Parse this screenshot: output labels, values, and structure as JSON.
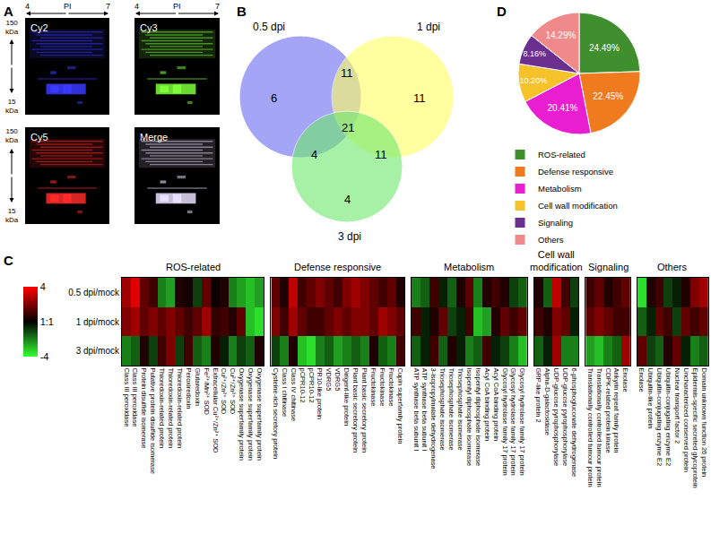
{
  "chart_data": [
    {
      "panel": "A",
      "type": "gel",
      "x_label": "PI",
      "x_ticks": [
        4,
        7
      ],
      "y_ticks": [
        "150 kDa",
        "15 kDa"
      ],
      "images": [
        {
          "name": "Cy2",
          "color": "#3a3aff"
        },
        {
          "name": "Cy3",
          "color": "#7dff3a"
        },
        {
          "name": "Cy5",
          "color": "#ff2a2a"
        },
        {
          "name": "Merge",
          "color": "#e8e0ff"
        }
      ]
    },
    {
      "panel": "B",
      "type": "venn",
      "sets": [
        {
          "name": "0.5 dpi",
          "color": "#6b6bf2"
        },
        {
          "name": "1 dpi",
          "color": "#ffff60"
        },
        {
          "name": "3 dpi",
          "color": "#6de86d"
        }
      ],
      "regions": [
        {
          "sets": [
            "0.5 dpi"
          ],
          "count": 6
        },
        {
          "sets": [
            "0.5 dpi",
            "1 dpi"
          ],
          "count": 11
        },
        {
          "sets": [
            "1 dpi"
          ],
          "count": 11
        },
        {
          "sets": [
            "0.5 dpi",
            "3 dpi"
          ],
          "count": 4
        },
        {
          "sets": [
            "0.5 dpi",
            "1 dpi",
            "3 dpi"
          ],
          "count": 21
        },
        {
          "sets": [
            "1 dpi",
            "3 dpi"
          ],
          "count": 11
        },
        {
          "sets": [
            "3 dpi"
          ],
          "count": 4
        }
      ]
    },
    {
      "panel": "C",
      "type": "heatmap",
      "rows": [
        "0.5 dpi/mock",
        "1 dpi/mock",
        "3 dpi/mock"
      ],
      "colorbar": {
        "range": [
          -4,
          4
        ],
        "ticks": [
          4,
          {
            "value": 0,
            "label": "1:1"
          },
          -4
        ],
        "colors": [
          "#33ff33",
          "#000000",
          "#ff0000"
        ]
      },
      "groups": [
        {
          "name": "ROS-related",
          "categories": [
            "Class III peroxidase",
            "Class III peroxidase",
            "Protein disulfide isomerase",
            "Putative protein disulfide isomerase",
            "Thioredoxin-related protein",
            "Thioredoxin-related protein",
            "Thioredoxin-related protein",
            "Peroxiredoxin",
            "Glutaredoxin",
            "Fe²⁺/Mn²⁺ SOD",
            "Extracellular Cu²⁺/Zn²⁺ SOD",
            "Cu²⁺/Zn²⁺ SOD",
            "Cu²⁺/Zn²⁺ SOD",
            "Oxygenase superfamily protein",
            "Oxygenase superfamily protein",
            "Oxygenase superfamily protein"
          ],
          "cells": [
            [
              2.5,
              3.5,
              1.5,
              1,
              -2,
              -2.5,
              0.5,
              0.3,
              -1,
              1.5,
              0.2,
              0.5,
              -2,
              -2.5,
              -3,
              -2.5
            ],
            [
              2,
              2.5,
              1.5,
              2,
              1.5,
              2,
              1.5,
              1,
              1.5,
              2.5,
              0.8,
              1,
              0.5,
              1.5,
              -3,
              -3.5
            ],
            [
              -2,
              -1.5,
              0.5,
              -1,
              1,
              2,
              -1,
              1,
              -1.5,
              -2,
              0.5,
              -0.5,
              -2,
              -1,
              -1.5,
              0.5
            ]
          ]
        },
        {
          "name": "Defense responsive",
          "categories": [
            "Cysteine-rich secretory protein",
            "Class I chitinase",
            "Class IV chitinase",
            "pCPR10-12",
            "pCPR10-12",
            "PR10-like protein",
            "VDRG5",
            "VDRG5",
            "Dirigent-like protein",
            "Plant basic secretory protein",
            "Plant basic secretory protein",
            "Fructokinase",
            "Fructokinase",
            "Fructokinase",
            "Cupin superfamily protein"
          ],
          "cells": [
            [
              1.5,
              0.5,
              3,
              1,
              1.5,
              2,
              1.5,
              1,
              2,
              2.5,
              2,
              1.5,
              1,
              1.5,
              0.5
            ],
            [
              2,
              1,
              2.5,
              1.5,
              1,
              1,
              1.5,
              2,
              1.5,
              2,
              2,
              1.5,
              2.5,
              2,
              1.5
            ],
            [
              -1,
              -2,
              0.5,
              -3,
              -3.5,
              -2,
              -1.5,
              -2.5,
              -2,
              -1.5,
              -2,
              0.5,
              -1.5,
              -2,
              1
            ]
          ]
        },
        {
          "name": "Metabolism",
          "categories": [
            "ATP synthase beta subunit I",
            "ATP synthase beta subunit I",
            "3-isopropylmalate dehydrogenase",
            "Triosephosphate isomerase",
            "Triosephosphate isomerase",
            "Triosephosphate isomerase",
            "Isopentyl diphosphate isomerase",
            "Isopentyl diphosphate isomerase",
            "Acyl CoA binding protein",
            "Acyl CoA binding protein",
            "Glycosyl hydrolase family 17 protein",
            "Glycosyl hydrolase family 17 protein",
            "Glycosyl hydrolase family 17 protein"
          ],
          "cells": [
            [
              -2,
              -1.5,
              1,
              -0.5,
              -1.5,
              0.5,
              1.5,
              -2,
              0.5,
              1,
              0.5,
              -1,
              -1.5
            ],
            [
              1,
              -0.5,
              0.5,
              1.5,
              -1,
              -0.5,
              1,
              -3,
              -2.5,
              0.5,
              1.5,
              1,
              1.5
            ],
            [
              -1.5,
              -0.5,
              1,
              -1.5,
              0.5,
              -0.5,
              -2,
              -1.5,
              1,
              -0.5,
              -1,
              -2,
              -3
            ]
          ]
        },
        {
          "name": "Cell wall modification",
          "categories": [
            "GRP-like protein 2",
            "Alpha-D-galactosidase",
            "UDP-glucose pyrophosphorylase",
            "UDP-glucose pyrophosphorylase",
            "6-phosphogluconate dehydrogenase"
          ],
          "cells": [
            [
              0.5,
              -1.5,
              3,
              1,
              -1
            ],
            [
              1,
              0.5,
              2,
              1.5,
              -0.5
            ],
            [
              -1.5,
              -0.5,
              2.5,
              -2,
              -2
            ]
          ]
        },
        {
          "name": "Signaling",
          "categories": [
            "Translationally controlled tumour protein",
            "Translationally controlled tumour protein",
            "CDPK-related protein kinase",
            "Ankyrin repeat family protein",
            "Enolase"
          ],
          "cells": [
            [
              1,
              1.5,
              0.5,
              1,
              1.5
            ],
            [
              1.5,
              2,
              1.5,
              1,
              1
            ],
            [
              -2.5,
              -3,
              -2,
              -1.5,
              2.5
            ]
          ]
        },
        {
          "name": "Others",
          "categories": [
            "Enolase",
            "Ubiquitin-like protein",
            "Ubiquitin-conjugating enzyme E2",
            "Ubiquitin-conjugating enzyme E2",
            "Nuclear transport factor 2",
            "Uncharacterized conserved protein",
            "Epidermis-specific secreted glycoprotein",
            "Domain unknown function 26 protein"
          ],
          "cells": [
            [
              -3.5,
              0.5,
              1,
              -1,
              -0.5,
              0.5,
              2,
              2.5
            ],
            [
              -1.5,
              -0.5,
              1.5,
              1,
              -1,
              1.5,
              1,
              1.5
            ],
            [
              1.5,
              -1,
              -1.5,
              0.5,
              1.5,
              -0.5,
              -2,
              -1.5
            ]
          ]
        }
      ]
    },
    {
      "panel": "D",
      "type": "pie",
      "categories": [
        "ROS-related",
        "Defense responsive",
        "Metabolism",
        "Cell wall modification",
        "Signaling",
        "Others"
      ],
      "values": [
        24.49,
        22.45,
        20.41,
        10.2,
        8.16,
        14.29
      ],
      "value_labels": [
        "24.49%",
        "22.45%",
        "20.41%",
        "10.20%",
        "8.16%",
        "14.29%"
      ],
      "colors": [
        "#3f8f2f",
        "#f07a1e",
        "#e81ed0",
        "#f5c22a",
        "#6b2f8f",
        "#f08a8a"
      ],
      "legend": "bottom"
    }
  ]
}
